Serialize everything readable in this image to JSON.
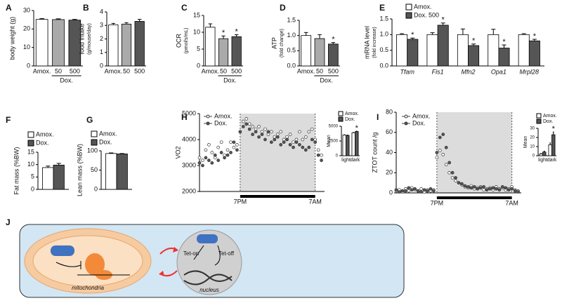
{
  "chart_data": [
    {
      "type": "bar",
      "panel": "A",
      "ylabel": "body weight (g)",
      "categories": [
        "Amox.",
        "50",
        "500"
      ],
      "group_label": "Dox.",
      "values": [
        25.2,
        25.1,
        24.8
      ],
      "errors": [
        0.4,
        0.4,
        0.4
      ],
      "colors": [
        "#ffffff",
        "#aaaaaa",
        "#555555"
      ],
      "ylim": [
        0,
        30
      ],
      "yticks": [
        0,
        10,
        20,
        30
      ]
    },
    {
      "type": "bar",
      "panel": "B",
      "ylabel": "food intake",
      "ylabel_sub": "(g/mouse/day)",
      "categories": [
        "Amox.",
        "50",
        "500"
      ],
      "values": [
        3.05,
        3.1,
        3.3
      ],
      "errors": [
        0.1,
        0.1,
        0.15
      ],
      "colors": [
        "#ffffff",
        "#aaaaaa",
        "#555555"
      ],
      "ylim": [
        0,
        4
      ],
      "yticks": [
        0,
        1,
        2,
        3,
        4
      ]
    },
    {
      "type": "bar",
      "panel": "C",
      "ylabel": "OCR",
      "ylabel_sub": "(pmol/s/mL)",
      "categories": [
        "Amox.",
        "50",
        "500"
      ],
      "group_label": "Dox.",
      "values": [
        11.5,
        8.1,
        8.7
      ],
      "errors": [
        1.0,
        0.8,
        0.6
      ],
      "significance": [
        null,
        "*",
        "*"
      ],
      "colors": [
        "#ffffff",
        "#aaaaaa",
        "#555555"
      ],
      "ylim": [
        0,
        15
      ],
      "yticks": [
        0,
        5,
        10,
        15
      ]
    },
    {
      "type": "bar",
      "panel": "D",
      "ylabel": "ATP",
      "ylabel_sub": "(fold change)",
      "categories": [
        "Amox.",
        "50",
        "500"
      ],
      "group_label": "Dox.",
      "values": [
        1.0,
        0.9,
        0.72
      ],
      "errors": [
        0.1,
        0.13,
        0.05
      ],
      "significance": [
        null,
        null,
        "*"
      ],
      "colors": [
        "#ffffff",
        "#aaaaaa",
        "#555555"
      ],
      "ylim": [
        0,
        1.5
      ],
      "yticks": [
        {
          "value": 0,
          "label": "0.0"
        },
        0.5,
        {
          "value": 1,
          "label": "1.0"
        },
        1.5
      ]
    },
    {
      "type": "bar",
      "panel": "E",
      "ylabel": "mRNA level",
      "ylabel_sub": "(fold increase)",
      "categories": [
        "Tfam",
        "Fis1",
        "Mfn2",
        "Opa1",
        "Mrpl28"
      ],
      "series": [
        {
          "name": "Amox.",
          "color": "#ffffff",
          "values": [
            1.0,
            1.0,
            1.0,
            1.0,
            1.0
          ],
          "errors": [
            0.03,
            0.06,
            0.18,
            0.17,
            0.03
          ]
        },
        {
          "name": "Dox. 500",
          "color": "#555555",
          "values": [
            0.85,
            1.3,
            0.65,
            0.57,
            0.8
          ],
          "errors": [
            0.04,
            0.07,
            0.05,
            0.1,
            0.05
          ],
          "significance": [
            "*",
            "*",
            "*",
            "*",
            "*"
          ]
        }
      ],
      "ylim": [
        0,
        1.5
      ],
      "yticks": [
        {
          "value": 0,
          "label": "0.0"
        },
        0.5,
        {
          "value": 1,
          "label": "1.0"
        },
        1.5
      ]
    },
    {
      "type": "bar",
      "panel": "F",
      "ylabel": "Fat mass (%BW)",
      "series": [
        {
          "name": "Amox.",
          "color": "#ffffff",
          "values": [
            8.8
          ],
          "errors": [
            0.6
          ]
        },
        {
          "name": "Dox.",
          "color": "#555555",
          "values": [
            9.8
          ],
          "errors": [
            0.7
          ]
        }
      ],
      "ylim": [
        0,
        15
      ],
      "yticks": [
        0,
        5,
        10,
        15
      ]
    },
    {
      "type": "bar",
      "panel": "G",
      "ylabel": "Lean mass (%BW)",
      "series": [
        {
          "name": "Amox.",
          "color": "#ffffff",
          "values": [
            93
          ],
          "errors": [
            1.5
          ]
        },
        {
          "name": "Dox.",
          "color": "#555555",
          "values": [
            92
          ],
          "errors": [
            1.0
          ]
        }
      ],
      "ylim": [
        0,
        100
      ],
      "yticks": [
        0,
        50,
        100
      ]
    },
    {
      "type": "line",
      "panel": "H",
      "ylabel": "VO2",
      "xlim": [
        0,
        20
      ],
      "xticks": [
        {
          "value": 6.5,
          "label": "7PM"
        },
        {
          "value": 18.5,
          "label": "7AM"
        }
      ],
      "ylim": [
        2000,
        5000
      ],
      "yticks": [
        2000,
        3000,
        4000,
        5000
      ],
      "x": [
        0,
        0.5,
        1,
        1.5,
        2,
        2.5,
        3,
        3.5,
        4,
        4.5,
        5,
        5.5,
        6,
        6.5,
        7,
        7.5,
        8,
        8.5,
        9,
        9.5,
        10,
        10.5,
        11,
        11.5,
        12,
        12.5,
        13,
        13.5,
        14,
        14.5,
        15,
        15.5,
        16,
        16.5,
        17,
        17.5,
        18,
        18.5,
        19,
        19.5
      ],
      "series": [
        {
          "name": "Amox.",
          "color": "#ffffff",
          "values": [
            3300,
            3200,
            3600,
            3800,
            3500,
            3300,
            3700,
            3900,
            3400,
            3600,
            3900,
            3700,
            3800,
            4300,
            4700,
            4800,
            4600,
            4500,
            4400,
            4500,
            4300,
            4400,
            4200,
            4300,
            4100,
            4200,
            4300,
            4000,
            4100,
            4200,
            3900,
            4000,
            4300,
            4000,
            4100,
            4300,
            4400,
            4000,
            3600,
            3400
          ]
        },
        {
          "name": "Dox.",
          "color": "#555555",
          "values": [
            3100,
            3000,
            3300,
            3200,
            3100,
            3400,
            3200,
            3500,
            3300,
            3400,
            3500,
            3900,
            3600,
            4300,
            4500,
            4600,
            4400,
            4200,
            4300,
            4100,
            4200,
            4000,
            4300,
            3900,
            4000,
            4100,
            3800,
            3900,
            4000,
            3800,
            3700,
            3900,
            3800,
            3700,
            3600,
            3700,
            4000,
            3900,
            3400,
            3200
          ]
        }
      ],
      "inset": {
        "type": "bar",
        "ylabel": "Mean",
        "categories": [
          "light",
          "dark"
        ],
        "series": [
          {
            "name": "Amox.",
            "color": "#ffffff",
            "values": [
              3500,
              3900
            ],
            "errors": [
              60,
              60
            ]
          },
          {
            "name": "Dox.",
            "color": "#555555",
            "values": [
              3450,
              4100
            ],
            "errors": [
              60,
              70
            ],
            "significance": [
              null,
              "*"
            ]
          }
        ],
        "ylim": [
          0,
          5000
        ],
        "yticks": [
          0,
          2500,
          5000
        ]
      }
    },
    {
      "type": "line",
      "panel": "I",
      "ylabel": "ZTOT count /g",
      "xlim": [
        0,
        20
      ],
      "xticks": [
        {
          "value": 6.5,
          "label": "7PM"
        },
        {
          "value": 18.5,
          "label": "7AM"
        }
      ],
      "ylim": [
        0,
        80
      ],
      "yticks": [
        0,
        20,
        40,
        60,
        80
      ],
      "x": [
        0,
        0.5,
        1,
        1.5,
        2,
        2.5,
        3,
        3.5,
        4,
        4.5,
        5,
        5.5,
        6,
        6.5,
        7,
        7.5,
        8,
        8.5,
        9,
        9.5,
        10,
        10.5,
        11,
        11.5,
        12,
        12.5,
        13,
        13.5,
        14,
        14.5,
        15,
        15.5,
        16,
        16.5,
        17,
        17.5,
        18,
        18.5,
        19,
        19.5
      ],
      "series": [
        {
          "name": "Amox.",
          "color": "#ffffff",
          "values": [
            2,
            3,
            1,
            4,
            2,
            5,
            3,
            2,
            4,
            1,
            3,
            2,
            3,
            35,
            42,
            38,
            28,
            20,
            15,
            12,
            10,
            8,
            6,
            5,
            7,
            4,
            5,
            6,
            3,
            4,
            5,
            3,
            6,
            4,
            5,
            3,
            4,
            6,
            3,
            2
          ]
        },
        {
          "name": "Dox.",
          "color": "#555555",
          "values": [
            3,
            1,
            2,
            2,
            5,
            3,
            4,
            2,
            1,
            3,
            2,
            4,
            2,
            40,
            55,
            58,
            45,
            30,
            20,
            15,
            10,
            9,
            7,
            6,
            5,
            6,
            4,
            5,
            6,
            3,
            4,
            5,
            4,
            3,
            6,
            5,
            3,
            4,
            2,
            1
          ]
        }
      ],
      "inset": {
        "type": "bar",
        "ylabel": "Mean",
        "categories": [
          "light",
          "dark"
        ],
        "series": [
          {
            "name": "Amox.",
            "color": "#ffffff",
            "values": [
              2,
              12
            ],
            "errors": [
              0.5,
              2
            ]
          },
          {
            "name": "Dox.",
            "color": "#555555",
            "values": [
              4,
              23
            ],
            "errors": [
              1,
              3
            ],
            "significance": [
              null,
              "*"
            ]
          }
        ],
        "ylim": [
          0,
          30
        ],
        "yticks": [
          0,
          10,
          20,
          30
        ]
      }
    }
  ],
  "diagram": {
    "panel": "J",
    "tet_on": "Tet-on",
    "tet_off": "Tet-off",
    "mitochondria": "mitochondria",
    "nucleus": "nucleus"
  }
}
